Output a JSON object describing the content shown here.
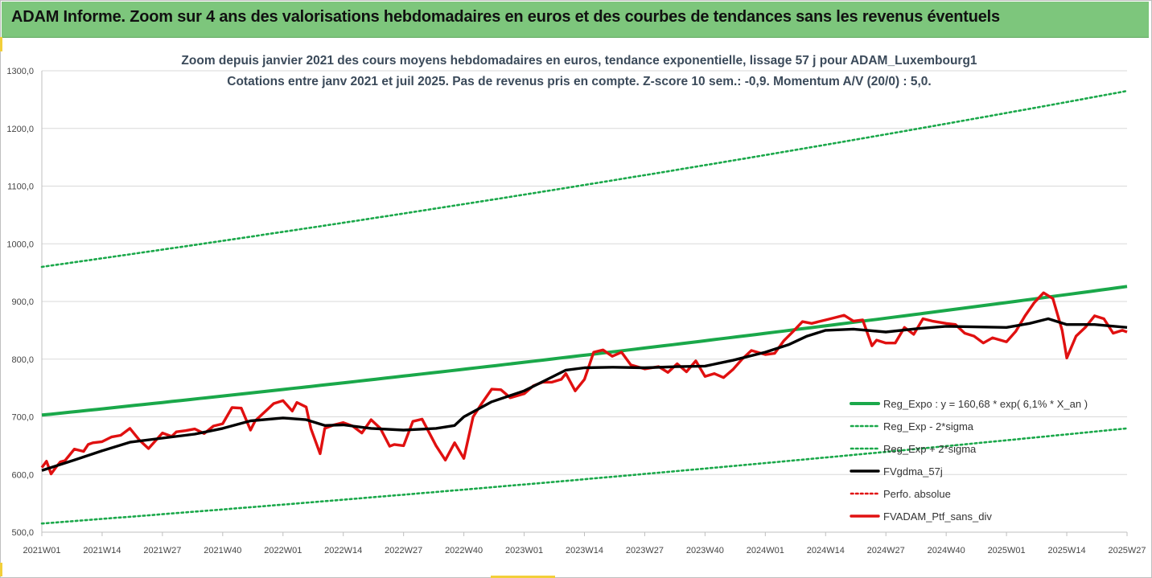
{
  "header": {
    "title": "ADAM Informe. Zoom sur 4 ans des valorisations hebdomadaires en euros et des courbes de tendances sans les revenus éventuels"
  },
  "colors": {
    "header_bg": "#7dc67c",
    "trend": "#1aa84a",
    "band": "#1aa84a",
    "smooth": "#000000",
    "price": "#e01010",
    "perf": "#e01010"
  },
  "chart_data": {
    "type": "line",
    "title_line1": "Zoom depuis janvier 2021 des cours moyens hebdomadaires  en euros, tendance exponentielle, lissage 57 j pour ADAM_Luxembourg1",
    "title_line2": "Cotations  entre janv 2021 et juil 2025. Pas de revenus pris en compte. Z-score 10 sem.: -0,9. Momentum A/V (20/0) : 5,0.",
    "ylim": [
      500,
      1300
    ],
    "y_ticks": [
      "500,0",
      "600,0",
      "700,0",
      "800,0",
      "900,0",
      "1000,0",
      "1100,0",
      "1200,0",
      "1300,0"
    ],
    "x_ticks": [
      "2021W01",
      "2021W14",
      "2021W27",
      "2021W40",
      "2022W01",
      "2022W14",
      "2022W27",
      "2022W40",
      "2023W01",
      "2023W14",
      "2023W27",
      "2023W40",
      "2024W01",
      "2024W14",
      "2024W27",
      "2024W40",
      "2025W01",
      "2025W14",
      "2025W27"
    ],
    "grid": "horizontal",
    "legend_position": "bottom-right",
    "legend": [
      {
        "key": "reg_expo",
        "label": "Reg_Expo : y = 160,68 * exp( 6,1% *  X_an )",
        "style": "solid-green-thick"
      },
      {
        "key": "minus2",
        "label": "Reg_Exp - 2*sigma",
        "style": "dotted-green"
      },
      {
        "key": "plus2",
        "label": "Reg_Exp + 2*sigma",
        "style": "dotted-green"
      },
      {
        "key": "smooth",
        "label": "FVgdma_57j",
        "style": "solid-black-thick"
      },
      {
        "key": "perf",
        "label": "Perfo. absolue",
        "style": "dotted-red"
      },
      {
        "key": "price",
        "label": "FVADAM_Ptf_sans_div",
        "style": "solid-red-thick"
      }
    ],
    "series": [
      {
        "name": "Reg_Expo : y = 160,68 * exp( 6,1% *  X_an )",
        "key": "reg_expo",
        "x": [
          "2021W01",
          "2025W27"
        ],
        "values": [
          703,
          926
        ],
        "curve": "exponential"
      },
      {
        "name": "Reg_Exp - 2*sigma",
        "key": "minus2",
        "x": [
          "2021W01",
          "2025W27"
        ],
        "values": [
          515,
          680
        ],
        "curve": "exponential"
      },
      {
        "name": "Reg_Exp + 2*sigma",
        "key": "plus2",
        "x": [
          "2021W01",
          "2025W27"
        ],
        "values": [
          960,
          1265
        ],
        "curve": "exponential"
      },
      {
        "name": "FVgdma_57j",
        "key": "smooth",
        "x": [
          "2021W01",
          "2021W08",
          "2021W14",
          "2021W20",
          "2021W27",
          "2021W34",
          "2021W40",
          "2021W46",
          "2022W01",
          "2022W06",
          "2022W10",
          "2022W14",
          "2022W20",
          "2022W27",
          "2022W34",
          "2022W38",
          "2022W40",
          "2022W46",
          "2023W01",
          "2023W06",
          "2023W10",
          "2023W14",
          "2023W20",
          "2023W27",
          "2023W34",
          "2023W40",
          "2023W46",
          "2024W01",
          "2024W06",
          "2024W10",
          "2024W14",
          "2024W20",
          "2024W27",
          "2024W34",
          "2024W40",
          "2024W46",
          "2025W01",
          "2025W06",
          "2025W10",
          "2025W14",
          "2025W20",
          "2025W27"
        ],
        "values": [
          607,
          625,
          641,
          656,
          663,
          670,
          680,
          693,
          698,
          695,
          685,
          686,
          680,
          677,
          680,
          685,
          700,
          726,
          745,
          765,
          781,
          785,
          786,
          785,
          787,
          788,
          798,
          812,
          825,
          840,
          850,
          852,
          847,
          853,
          857,
          856,
          855,
          862,
          870,
          860,
          860,
          855
        ]
      },
      {
        "name": "FVADAM_Ptf_sans_div",
        "key": "price",
        "x": [
          "2021W01",
          "2021W02",
          "2021W03",
          "2021W04",
          "2021W05",
          "2021W06",
          "2021W08",
          "2021W10",
          "2021W11",
          "2021W12",
          "2021W14",
          "2021W16",
          "2021W18",
          "2021W20",
          "2021W22",
          "2021W24",
          "2021W27",
          "2021W29",
          "2021W30",
          "2021W32",
          "2021W34",
          "2021W36",
          "2021W38",
          "2021W40",
          "2021W42",
          "2021W44",
          "2021W46",
          "2021W47",
          "2021W49",
          "2021W51",
          "2022W01",
          "2022W03",
          "2022W04",
          "2022W06",
          "2022W07",
          "2022W09",
          "2022W10",
          "2022W12",
          "2022W14",
          "2022W16",
          "2022W18",
          "2022W20",
          "2022W22",
          "2022W24",
          "2022W25",
          "2022W27",
          "2022W29",
          "2022W31",
          "2022W34",
          "2022W36",
          "2022W38",
          "2022W40",
          "2022W42",
          "2022W44",
          "2022W46",
          "2022W48",
          "2022W50",
          "2023W01",
          "2023W03",
          "2023W05",
          "2023W07",
          "2023W09",
          "2023W10",
          "2023W12",
          "2023W14",
          "2023W16",
          "2023W18",
          "2023W20",
          "2023W22",
          "2023W24",
          "2023W27",
          "2023W30",
          "2023W32",
          "2023W34",
          "2023W36",
          "2023W38",
          "2023W40",
          "2023W42",
          "2023W44",
          "2023W46",
          "2023W48",
          "2023W50",
          "2024W01",
          "2024W03",
          "2024W05",
          "2024W07",
          "2024W09",
          "2024W11",
          "2024W14",
          "2024W16",
          "2024W18",
          "2024W20",
          "2024W22",
          "2024W24",
          "2024W25",
          "2024W27",
          "2024W29",
          "2024W31",
          "2024W33",
          "2024W35",
          "2024W37",
          "2024W40",
          "2024W42",
          "2024W44",
          "2024W46",
          "2024W48",
          "2024W50",
          "2025W01",
          "2025W03",
          "2025W05",
          "2025W07",
          "2025W09",
          "2025W11",
          "2025W13",
          "2025W14",
          "2025W16",
          "2025W18",
          "2025W20",
          "2025W22",
          "2025W24",
          "2025W26",
          "2025W27"
        ],
        "values": [
          612,
          623,
          601,
          612,
          622,
          624,
          644,
          640,
          652,
          655,
          657,
          665,
          668,
          680,
          660,
          645,
          672,
          666,
          674,
          676,
          679,
          671,
          684,
          688,
          716,
          715,
          677,
          693,
          708,
          723,
          728,
          710,
          725,
          717,
          680,
          636,
          680,
          686,
          690,
          684,
          672,
          695,
          680,
          649,
          652,
          650,
          692,
          696,
          650,
          625,
          655,
          628,
          700,
          725,
          748,
          747,
          733,
          740,
          754,
          760,
          760,
          765,
          775,
          745,
          765,
          812,
          816,
          805,
          812,
          790,
          783,
          787,
          777,
          792,
          778,
          797,
          770,
          775,
          768,
          782,
          800,
          815,
          808,
          810,
          832,
          848,
          865,
          862,
          868,
          872,
          876,
          866,
          868,
          823,
          833,
          828,
          828,
          855,
          843,
          870,
          866,
          862,
          860,
          845,
          840,
          828,
          837,
          830,
          848,
          875,
          898,
          915,
          905,
          850,
          802,
          840,
          855,
          875,
          870,
          845,
          850,
          847
        ]
      }
    ]
  }
}
